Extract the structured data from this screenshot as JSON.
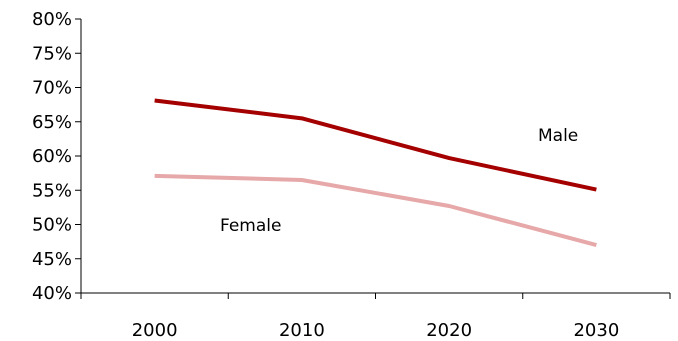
{
  "chart_data": {
    "type": "line",
    "title": "",
    "xlabel": "",
    "ylabel": "",
    "x": [
      "2000",
      "2010",
      "2020",
      "2030"
    ],
    "ylim": [
      0.4,
      0.8
    ],
    "yticks": [
      0.4,
      0.45,
      0.5,
      0.55,
      0.6,
      0.65,
      0.7,
      0.75,
      0.8
    ],
    "ytick_labels": [
      "40%",
      "45%",
      "50%",
      "55%",
      "60%",
      "65%",
      "70%",
      "75%",
      "80%"
    ],
    "xtick_labels": [
      "2000",
      "2010",
      "2020",
      "2030"
    ],
    "grid": false,
    "legend": "none",
    "series": [
      {
        "name": "Male",
        "values": [
          0.681,
          0.655,
          0.597,
          0.551
        ],
        "color": "#a50000"
      },
      {
        "name": "Female",
        "values": [
          0.571,
          0.565,
          0.527,
          0.47
        ],
        "color": "#e6a8a8"
      }
    ]
  }
}
